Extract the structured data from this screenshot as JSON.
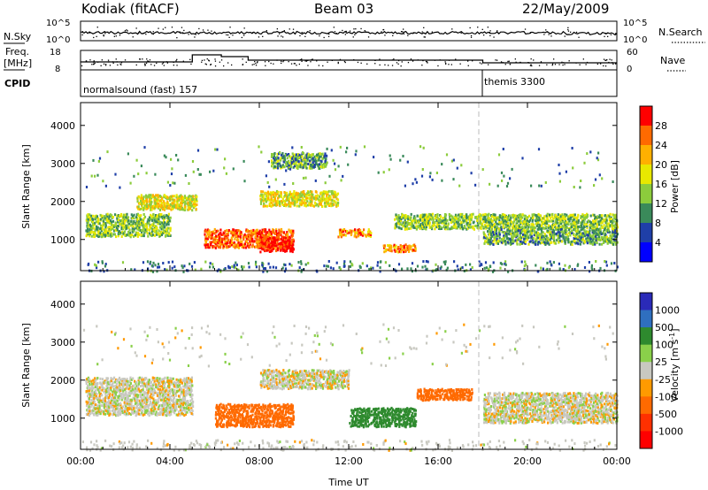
{
  "header": {
    "title": "Kodiak (fitACF)",
    "beam": "Beam 03",
    "date": "22/May/2009"
  },
  "noise_panel": {
    "left_label": "N.Sky",
    "right_label": "N.Search",
    "left_ticks": [
      "10^5",
      "10^0"
    ],
    "right_ticks": [
      "10^5",
      "10^0"
    ]
  },
  "freq_panel": {
    "left_label_1": "Freq.",
    "left_label_2": "[MHz]",
    "left_ticks": [
      "18",
      "8"
    ],
    "right_label": "Nave",
    "right_ticks": [
      "60",
      "0"
    ]
  },
  "cpid": {
    "label": "CPID",
    "modes": [
      {
        "name": "normalsound (fast) 157",
        "start_hour": 0,
        "end_hour": 18
      },
      {
        "name": "themis 3300",
        "start_hour": 18,
        "end_hour": 24
      }
    ]
  },
  "power_panel": {
    "ylabel": "Slant Range [km]",
    "colorbar_label": "Power [dB]",
    "colorbar_ticks": [
      "28",
      "24",
      "20",
      "16",
      "12",
      "8",
      "4"
    ],
    "colorbar_colors": [
      "#ff0000",
      "#ff6a00",
      "#ffb000",
      "#e8e800",
      "#8ccc3c",
      "#3a8a5a",
      "#1f3fa8",
      "#0000ff"
    ]
  },
  "velocity_panel": {
    "ylabel": "Velocity",
    "ylabel_unit": "[m s",
    "ylabel_unit_sup": "-1",
    "ylabel_unit_end": "]",
    "colorbar_ticks": [
      "1000",
      "500",
      "100",
      "25",
      "-25",
      "-100",
      "-500",
      "-1000"
    ],
    "colorbar_colors": [
      "#2a2ab8",
      "#2f6fbf",
      "#2e8a2e",
      "#8ad04a",
      "#c8c8c0",
      "#ff9a00",
      "#ff6a00",
      "#ff3000",
      "#ff0000"
    ]
  },
  "range_axis": {
    "ticks": [
      "4000",
      "3000",
      "2000",
      "1000"
    ]
  },
  "time_axis": {
    "label": "Time UT",
    "ticks": [
      "00:00",
      "04:00",
      "08:00",
      "12:00",
      "16:00",
      "20:00",
      "00:00"
    ]
  },
  "chart_data": [
    {
      "type": "heatmap",
      "title": "Power",
      "xlabel": "Time UT",
      "ylabel": "Slant Range [km]",
      "x_range_hours": [
        0,
        24
      ],
      "ylim": [
        180,
        4600
      ],
      "colorbar": {
        "label": "Power [dB]",
        "min": 0,
        "max": 32
      },
      "features": [
        {
          "t0": 0.2,
          "t1": 4.0,
          "r0": 1100,
          "r1": 1700,
          "dB": 14
        },
        {
          "t0": 2.5,
          "t1": 5.2,
          "r0": 1800,
          "r1": 2200,
          "dB": 18
        },
        {
          "t0": 5.5,
          "t1": 9.5,
          "r0": 800,
          "r1": 1300,
          "dB": 26
        },
        {
          "t0": 8.0,
          "t1": 9.5,
          "r0": 700,
          "r1": 1100,
          "dB": 30
        },
        {
          "t0": 8.5,
          "t1": 11.0,
          "r0": 2900,
          "r1": 3300,
          "dB": 12
        },
        {
          "t0": 8.0,
          "t1": 11.5,
          "r0": 1900,
          "r1": 2300,
          "dB": 18
        },
        {
          "t0": 11.5,
          "t1": 13.0,
          "r0": 1100,
          "r1": 1300,
          "dB": 24
        },
        {
          "t0": 13.5,
          "t1": 15.0,
          "r0": 700,
          "r1": 900,
          "dB": 24
        },
        {
          "t0": 14.0,
          "t1": 24.0,
          "r0": 1300,
          "r1": 1700,
          "dB": 14
        },
        {
          "t0": 18.0,
          "t1": 24.0,
          "r0": 900,
          "r1": 1300,
          "dB": 12
        }
      ]
    },
    {
      "type": "heatmap",
      "title": "Velocity",
      "xlabel": "Time UT",
      "ylabel": "Slant Range [km]",
      "x_range_hours": [
        0,
        24
      ],
      "ylim": [
        180,
        4600
      ],
      "colorbar": {
        "label": "Velocity [m s-1]",
        "min": -1000,
        "max": 1000
      },
      "features": [
        {
          "t0": 0.2,
          "t1": 5.0,
          "r0": 1100,
          "r1": 2100,
          "vel": 0
        },
        {
          "t0": 6.0,
          "t1": 9.5,
          "r0": 800,
          "r1": 1400,
          "vel": -300
        },
        {
          "t0": 8.0,
          "t1": 12.0,
          "r0": 1800,
          "r1": 2300,
          "vel": 0
        },
        {
          "t0": 12.0,
          "t1": 15.0,
          "r0": 800,
          "r1": 1300,
          "vel": 150
        },
        {
          "t0": 15.0,
          "t1": 17.5,
          "r0": 1500,
          "r1": 1800,
          "vel": -200
        },
        {
          "t0": 18.0,
          "t1": 24.0,
          "r0": 900,
          "r1": 1700,
          "vel": 0
        }
      ]
    }
  ]
}
